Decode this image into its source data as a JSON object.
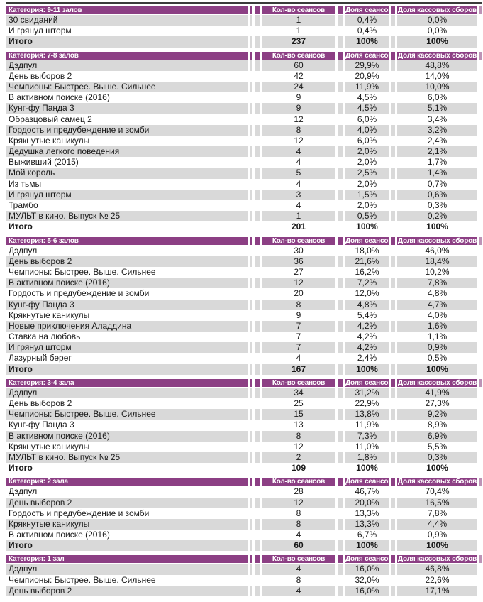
{
  "table": {
    "columns": [
      "Кол-во сеансов",
      "Доля сеансов",
      "Доля кассовых сборов"
    ],
    "colors": {
      "header_bg": "#8c3f84",
      "header_edge": "#bd93b6",
      "stripe": "#d9d9d9",
      "text": "#1a1a1a",
      "top_rule": "#3b3b3b"
    },
    "sections": [
      {
        "category": "Категория: 9-11 залов",
        "stripe_start": "gray",
        "rows": [
          {
            "title": "30 свиданий",
            "sessions": "1",
            "share": "0,4%",
            "gross": "0,0%"
          },
          {
            "title": "И грянул шторм",
            "sessions": "1",
            "share": "0,4%",
            "gross": "0,0%"
          }
        ],
        "total": {
          "title": "Итого",
          "sessions": "237",
          "share": "100%",
          "gross": "100%"
        }
      },
      {
        "category": "Категория: 7-8 залов",
        "stripe_start": "gray",
        "rows": [
          {
            "title": "Дэдпул",
            "sessions": "60",
            "share": "29,9%",
            "gross": "48,8%"
          },
          {
            "title": "День выборов 2",
            "sessions": "42",
            "share": "20,9%",
            "gross": "14,0%"
          },
          {
            "title": "Чемпионы: Быстрее. Выше. Сильнее",
            "sessions": "24",
            "share": "11,9%",
            "gross": "10,0%"
          },
          {
            "title": "В активном поиске (2016)",
            "sessions": "9",
            "share": "4,5%",
            "gross": "6,0%"
          },
          {
            "title": "Кунг-фу Панда 3",
            "sessions": "9",
            "share": "4,5%",
            "gross": "5,1%"
          },
          {
            "title": "Образцовый самец 2",
            "sessions": "12",
            "share": "6,0%",
            "gross": "3,4%"
          },
          {
            "title": "Гордость и предубеждение и зомби",
            "sessions": "8",
            "share": "4,0%",
            "gross": "3,2%"
          },
          {
            "title": "Крякнутые каникулы",
            "sessions": "12",
            "share": "6,0%",
            "gross": "2,4%"
          },
          {
            "title": "Дедушка легкого поведения",
            "sessions": "4",
            "share": "2,0%",
            "gross": "2,1%"
          },
          {
            "title": "Выживший (2015)",
            "sessions": "4",
            "share": "2,0%",
            "gross": "1,7%"
          },
          {
            "title": "Мой король",
            "sessions": "5",
            "share": "2,5%",
            "gross": "1,4%"
          },
          {
            "title": "Из тьмы",
            "sessions": "4",
            "share": "2,0%",
            "gross": "0,7%"
          },
          {
            "title": "И грянул шторм",
            "sessions": "3",
            "share": "1,5%",
            "gross": "0,6%"
          },
          {
            "title": "Трамбо",
            "sessions": "4",
            "share": "2,0%",
            "gross": "0,3%"
          },
          {
            "title": "МУЛЬТ в кино. Выпуск № 25",
            "sessions": "1",
            "share": "0,5%",
            "gross": "0,2%"
          }
        ],
        "total": {
          "title": "Итого",
          "sessions": "201",
          "share": "100%",
          "gross": "100%"
        }
      },
      {
        "category": "Категория: 5-6 залов",
        "stripe_start": "white",
        "rows": [
          {
            "title": "Дэдпул",
            "sessions": "30",
            "share": "18,0%",
            "gross": "46,0%"
          },
          {
            "title": "День выборов 2",
            "sessions": "36",
            "share": "21,6%",
            "gross": "18,4%"
          },
          {
            "title": "Чемпионы: Быстрее. Выше. Сильнее",
            "sessions": "27",
            "share": "16,2%",
            "gross": "10,2%"
          },
          {
            "title": "В активном поиске (2016)",
            "sessions": "12",
            "share": "7,2%",
            "gross": "7,8%"
          },
          {
            "title": "Гордость и предубеждение и зомби",
            "sessions": "20",
            "share": "12,0%",
            "gross": "4,8%"
          },
          {
            "title": "Кунг-фу Панда 3",
            "sessions": "8",
            "share": "4,8%",
            "gross": "4,7%"
          },
          {
            "title": "Крякнутые каникулы",
            "sessions": "9",
            "share": "5,4%",
            "gross": "4,0%"
          },
          {
            "title": "Новые приключения Аладдина",
            "sessions": "7",
            "share": "4,2%",
            "gross": "1,6%"
          },
          {
            "title": "Ставка на любовь",
            "sessions": "7",
            "share": "4,2%",
            "gross": "1,1%"
          },
          {
            "title": "И грянул шторм",
            "sessions": "7",
            "share": "4,2%",
            "gross": "0,9%"
          },
          {
            "title": "Лазурный берег",
            "sessions": "4",
            "share": "2,4%",
            "gross": "0,5%"
          }
        ],
        "total": {
          "title": "Итого",
          "sessions": "167",
          "share": "100%",
          "gross": "100%"
        }
      },
      {
        "category": "Категория: 3-4 зала",
        "stripe_start": "gray",
        "rows": [
          {
            "title": "Дэдпул",
            "sessions": "34",
            "share": "31,2%",
            "gross": "41,9%"
          },
          {
            "title": "День выборов 2",
            "sessions": "25",
            "share": "22,9%",
            "gross": "27,3%"
          },
          {
            "title": "Чемпионы: Быстрее. Выше. Сильнее",
            "sessions": "15",
            "share": "13,8%",
            "gross": "9,2%"
          },
          {
            "title": "Кунг-фу Панда 3",
            "sessions": "13",
            "share": "11,9%",
            "gross": "8,9%"
          },
          {
            "title": "В активном поиске (2016)",
            "sessions": "8",
            "share": "7,3%",
            "gross": "6,9%"
          },
          {
            "title": "Крякнутые каникулы",
            "sessions": "12",
            "share": "11,0%",
            "gross": "5,5%"
          },
          {
            "title": "МУЛЬТ в кино. Выпуск № 25",
            "sessions": "2",
            "share": "1,8%",
            "gross": "0,3%"
          }
        ],
        "total": {
          "title": "Итого",
          "sessions": "109",
          "share": "100%",
          "gross": "100%"
        }
      },
      {
        "category": "Категория: 2 зала",
        "stripe_start": "white",
        "rows": [
          {
            "title": "Дэдпул",
            "sessions": "28",
            "share": "46,7%",
            "gross": "70,4%"
          },
          {
            "title": "День выборов 2",
            "sessions": "12",
            "share": "20,0%",
            "gross": "16,5%"
          },
          {
            "title": "Гордость и предубеждение и зомби",
            "sessions": "8",
            "share": "13,3%",
            "gross": "7,8%"
          },
          {
            "title": "Крякнутые каникулы",
            "sessions": "8",
            "share": "13,3%",
            "gross": "4,4%"
          },
          {
            "title": "В активном поиске (2016)",
            "sessions": "4",
            "share": "6,7%",
            "gross": "0,9%"
          }
        ],
        "total": {
          "title": "Итого",
          "sessions": "60",
          "share": "100%",
          "gross": "100%"
        }
      },
      {
        "category": "Категория: 1 зал",
        "stripe_start": "gray",
        "rows": [
          {
            "title": "Дэдпул",
            "sessions": "4",
            "share": "16,0%",
            "gross": "46,8%"
          },
          {
            "title": "Чемпионы: Быстрее. Выше. Сильнее",
            "sessions": "8",
            "share": "32,0%",
            "gross": "22,6%"
          },
          {
            "title": "День выборов 2",
            "sessions": "4",
            "share": "16,0%",
            "gross": "17,1%"
          }
        ],
        "total": null
      }
    ]
  }
}
